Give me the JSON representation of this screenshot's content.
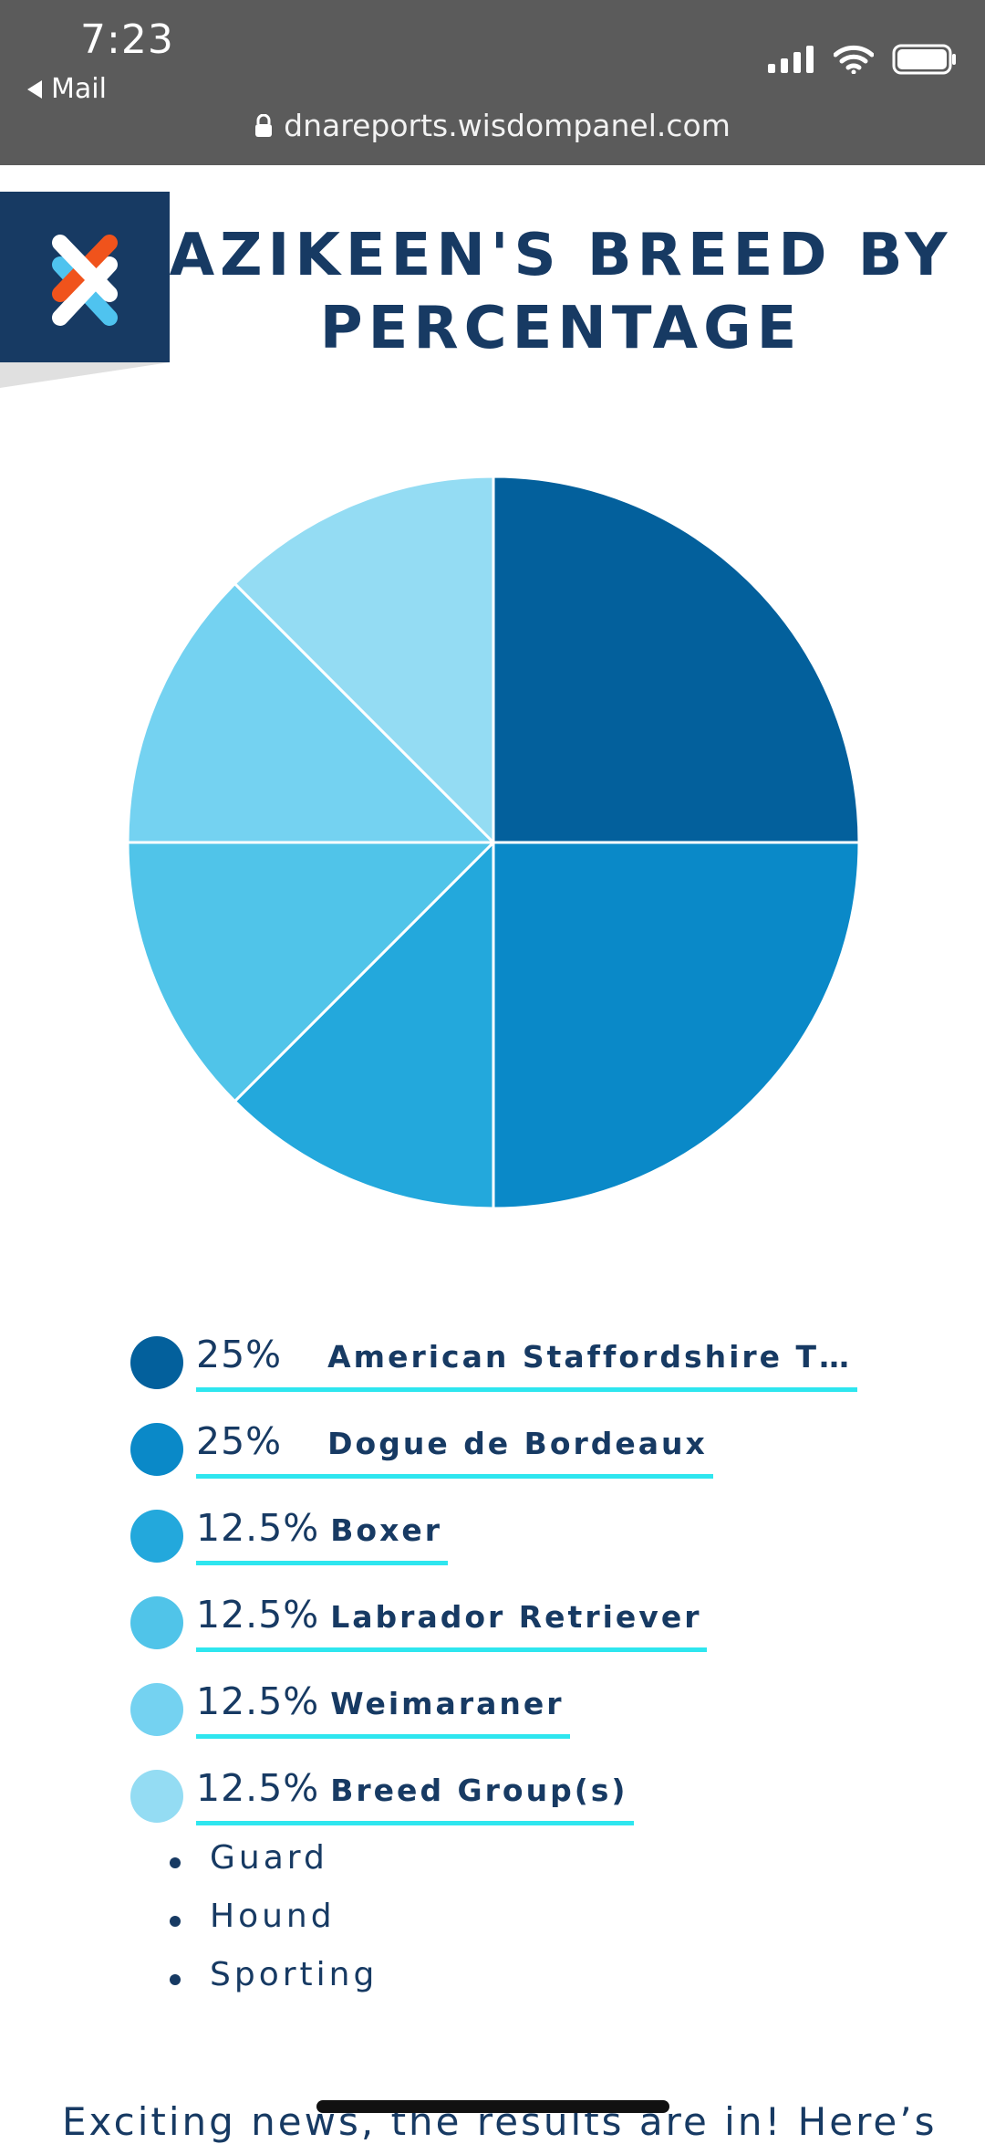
{
  "status_bar": {
    "time": "7:23",
    "back_label": "Mail"
  },
  "browser": {
    "url": "dnareports.wisdompanel.com"
  },
  "header": {
    "title_line1": "AZIKEEN'S BREED BY",
    "title_line2": "PERCENTAGE"
  },
  "chart_data": {
    "type": "pie",
    "labels": [
      "American Staffordshire T…",
      "Dogue de Bordeaux",
      "Boxer",
      "Labrador Retriever",
      "Weimaraner",
      "Breed Group(s)"
    ],
    "values": [
      25,
      25,
      12.5,
      12.5,
      12.5,
      12.5
    ],
    "colors": [
      "#03609c",
      "#0a89c8",
      "#23a8dc",
      "#50c4e9",
      "#74d2f1",
      "#94dcf3"
    ],
    "title": "",
    "legend": "bottom"
  },
  "legend": [
    {
      "pct": "25%",
      "name": "American Staffordshire T…"
    },
    {
      "pct": "25%",
      "name": "Dogue de Bordeaux"
    },
    {
      "pct": "12.5%",
      "name": "Boxer"
    },
    {
      "pct": "12.5%",
      "name": "Labrador Retriever"
    },
    {
      "pct": "12.5%",
      "name": "Weimaraner"
    },
    {
      "pct": "12.5%",
      "name": "Breed Group(s)"
    }
  ],
  "breed_groups": [
    "Guard",
    "Hound",
    "Sporting"
  ],
  "footer_text": "Exciting news, the results are in! Here’s",
  "colors": {
    "navy": "#173a63",
    "underline": "#2ee6ef",
    "topbar": "#5b5b5b",
    "logo_orange": "#f0531c",
    "logo_blue": "#4fc3ef"
  },
  "icons": [
    "back-arrow-icon",
    "signal-icon",
    "wifi-icon",
    "battery-icon",
    "lock-icon",
    "wisdom-panel-logo"
  ]
}
